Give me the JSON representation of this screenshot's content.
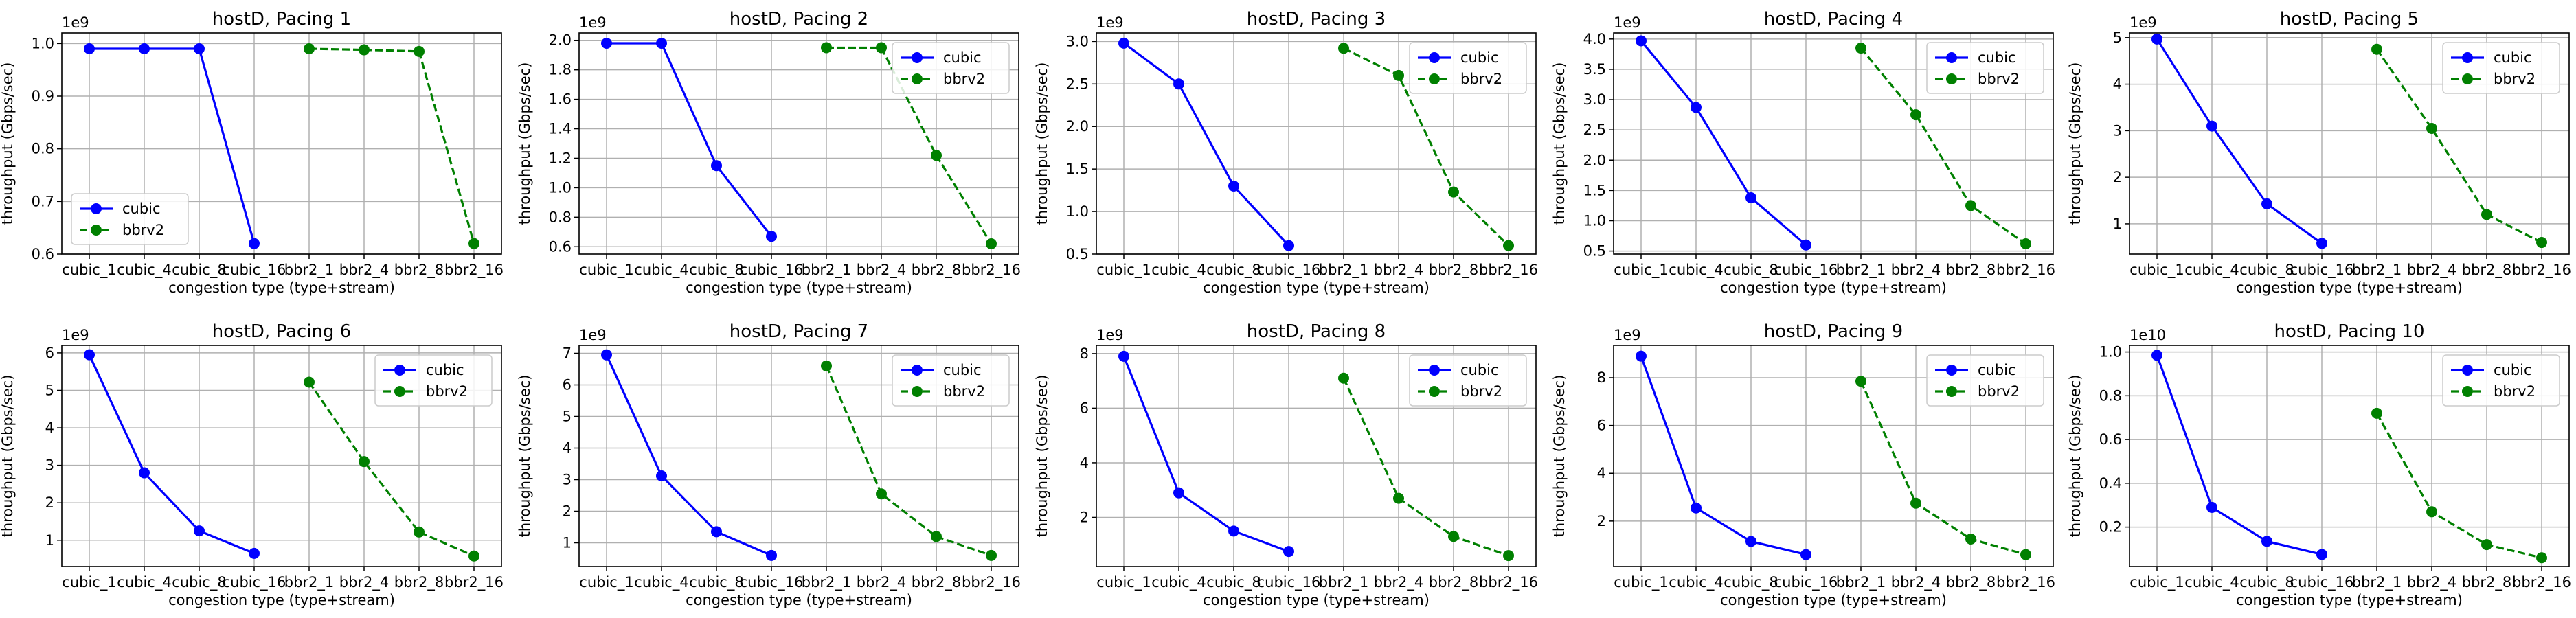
{
  "figure": {
    "xlabel": "congestion type (type+stream)",
    "ylabel": "throughput (Gbps/sec)",
    "series_names": [
      "cubic",
      "bbrv2"
    ],
    "series_colors": {
      "cubic": "#0000ff",
      "bbrv2": "#008000"
    },
    "grid": true
  },
  "chart_data": [
    {
      "type": "line",
      "title": "hostD, Pacing 1",
      "offset_label": "1e9",
      "legend": "lower-left",
      "categories": [
        "cubic_1",
        "cubic_4",
        "cubic_8",
        "cubic_16",
        "bbr2_1",
        "bbr2_4",
        "bbr2_8",
        "bbr2_16"
      ],
      "ylim": [
        0.6,
        1.02
      ],
      "yticks": [
        0.6,
        0.7,
        0.8,
        0.9,
        1.0
      ],
      "ytick_labels": [
        "0.6",
        "0.7",
        "0.8",
        "0.9",
        "1.0"
      ],
      "series": [
        {
          "name": "cubic",
          "style": "solid",
          "x": [
            0,
            1,
            2,
            3
          ],
          "values": [
            0.99,
            0.99,
            0.99,
            0.62
          ]
        },
        {
          "name": "bbrv2",
          "style": "dashed",
          "x": [
            4,
            5,
            6,
            7
          ],
          "values": [
            0.99,
            0.988,
            0.985,
            0.62
          ]
        }
      ],
      "xlabel": "congestion type (type+stream)",
      "ylabel": "throughput (Gbps/sec)"
    },
    {
      "type": "line",
      "title": "hostD, Pacing 2",
      "offset_label": "1e9",
      "legend": "top-right",
      "categories": [
        "cubic_1",
        "cubic_4",
        "cubic_8",
        "cubic_16",
        "bbr2_1",
        "bbr2_4",
        "bbr2_8",
        "bbr2_16"
      ],
      "ylim": [
        0.55,
        2.05
      ],
      "yticks": [
        0.6,
        0.8,
        1.0,
        1.2,
        1.4,
        1.6,
        1.8,
        2.0
      ],
      "ytick_labels": [
        "0.6",
        "0.8",
        "1.0",
        "1.2",
        "1.4",
        "1.6",
        "1.8",
        "2.0"
      ],
      "series": [
        {
          "name": "cubic",
          "style": "solid",
          "x": [
            0,
            1,
            2,
            3
          ],
          "values": [
            1.98,
            1.98,
            1.15,
            0.67
          ]
        },
        {
          "name": "bbrv2",
          "style": "dashed",
          "x": [
            4,
            5,
            6,
            7
          ],
          "values": [
            1.95,
            1.95,
            1.22,
            0.62
          ]
        }
      ],
      "xlabel": "congestion type (type+stream)",
      "ylabel": "throughput (Gbps/sec)"
    },
    {
      "type": "line",
      "title": "hostD, Pacing 3",
      "offset_label": "1e9",
      "legend": "top-right",
      "categories": [
        "cubic_1",
        "cubic_4",
        "cubic_8",
        "cubic_16",
        "bbr2_1",
        "bbr2_4",
        "bbr2_8",
        "bbr2_16"
      ],
      "ylim": [
        0.5,
        3.1
      ],
      "yticks": [
        0.5,
        1.0,
        1.5,
        2.0,
        2.5,
        3.0
      ],
      "ytick_labels": [
        "0.5",
        "1.0",
        "1.5",
        "2.0",
        "2.5",
        "3.0"
      ],
      "series": [
        {
          "name": "cubic",
          "style": "solid",
          "x": [
            0,
            1,
            2,
            3
          ],
          "values": [
            2.98,
            2.5,
            1.3,
            0.6
          ]
        },
        {
          "name": "bbrv2",
          "style": "dashed",
          "x": [
            4,
            5,
            6,
            7
          ],
          "values": [
            2.92,
            2.6,
            1.23,
            0.6
          ]
        }
      ],
      "xlabel": "congestion type (type+stream)",
      "ylabel": "throughput (Gbps/sec)"
    },
    {
      "type": "line",
      "title": "hostD, Pacing 4",
      "offset_label": "1e9",
      "legend": "top-right",
      "categories": [
        "cubic_1",
        "cubic_4",
        "cubic_8",
        "cubic_16",
        "bbr2_1",
        "bbr2_4",
        "bbr2_8",
        "bbr2_16"
      ],
      "ylim": [
        0.45,
        4.1
      ],
      "yticks": [
        0.5,
        1.0,
        1.5,
        2.0,
        2.5,
        3.0,
        3.5,
        4.0
      ],
      "ytick_labels": [
        "0.5",
        "1.0",
        "1.5",
        "2.0",
        "2.5",
        "3.0",
        "3.5",
        "4.0"
      ],
      "series": [
        {
          "name": "cubic",
          "style": "solid",
          "x": [
            0,
            1,
            2,
            3
          ],
          "values": [
            3.97,
            2.87,
            1.38,
            0.6
          ]
        },
        {
          "name": "bbrv2",
          "style": "dashed",
          "x": [
            4,
            5,
            6,
            7
          ],
          "values": [
            3.85,
            2.75,
            1.25,
            0.62
          ]
        }
      ],
      "xlabel": "congestion type (type+stream)",
      "ylabel": "throughput (Gbps/sec)"
    },
    {
      "type": "line",
      "title": "hostD, Pacing 5",
      "offset_label": "1e9",
      "legend": "top-right",
      "categories": [
        "cubic_1",
        "cubic_4",
        "cubic_8",
        "cubic_16",
        "bbr2_1",
        "bbr2_4",
        "bbr2_8",
        "bbr2_16"
      ],
      "ylim": [
        0.35,
        5.1
      ],
      "yticks": [
        1,
        2,
        3,
        4,
        5
      ],
      "ytick_labels": [
        "1",
        "2",
        "3",
        "4",
        "5"
      ],
      "series": [
        {
          "name": "cubic",
          "style": "solid",
          "x": [
            0,
            1,
            2,
            3
          ],
          "values": [
            4.97,
            3.1,
            1.43,
            0.58
          ]
        },
        {
          "name": "bbrv2",
          "style": "dashed",
          "x": [
            4,
            5,
            6,
            7
          ],
          "values": [
            4.75,
            3.05,
            1.2,
            0.6
          ]
        }
      ],
      "xlabel": "congestion type (type+stream)",
      "ylabel": "throughput (Gbps/sec)"
    },
    {
      "type": "line",
      "title": "hostD, Pacing 6",
      "offset_label": "1e9",
      "legend": "top-right",
      "categories": [
        "cubic_1",
        "cubic_4",
        "cubic_8",
        "cubic_16",
        "bbr2_1",
        "bbr2_4",
        "bbr2_8",
        "bbr2_16"
      ],
      "ylim": [
        0.3,
        6.2
      ],
      "yticks": [
        1,
        2,
        3,
        4,
        5,
        6
      ],
      "ytick_labels": [
        "1",
        "2",
        "3",
        "4",
        "5",
        "6"
      ],
      "series": [
        {
          "name": "cubic",
          "style": "solid",
          "x": [
            0,
            1,
            2,
            3
          ],
          "values": [
            5.95,
            2.8,
            1.25,
            0.65
          ]
        },
        {
          "name": "bbrv2",
          "style": "dashed",
          "x": [
            4,
            5,
            6,
            7
          ],
          "values": [
            5.22,
            3.1,
            1.22,
            0.58
          ]
        }
      ],
      "xlabel": "congestion type (type+stream)",
      "ylabel": "throughput (Gbps/sec)"
    },
    {
      "type": "line",
      "title": "hostD, Pacing 7",
      "offset_label": "1e9",
      "legend": "top-right",
      "categories": [
        "cubic_1",
        "cubic_4",
        "cubic_8",
        "cubic_16",
        "bbr2_1",
        "bbr2_4",
        "bbr2_8",
        "bbr2_16"
      ],
      "ylim": [
        0.25,
        7.25
      ],
      "yticks": [
        1,
        2,
        3,
        4,
        5,
        6,
        7
      ],
      "ytick_labels": [
        "1",
        "2",
        "3",
        "4",
        "5",
        "6",
        "7"
      ],
      "series": [
        {
          "name": "cubic",
          "style": "solid",
          "x": [
            0,
            1,
            2,
            3
          ],
          "values": [
            6.95,
            3.12,
            1.35,
            0.6
          ]
        },
        {
          "name": "bbrv2",
          "style": "dashed",
          "x": [
            4,
            5,
            6,
            7
          ],
          "values": [
            6.6,
            2.55,
            1.2,
            0.6
          ]
        }
      ],
      "xlabel": "congestion type (type+stream)",
      "ylabel": "throughput (Gbps/sec)"
    },
    {
      "type": "line",
      "title": "hostD, Pacing 8",
      "offset_label": "1e9",
      "legend": "top-right",
      "categories": [
        "cubic_1",
        "cubic_4",
        "cubic_8",
        "cubic_16",
        "bbr2_1",
        "bbr2_4",
        "bbr2_8",
        "bbr2_16"
      ],
      "ylim": [
        0.2,
        8.3
      ],
      "yticks": [
        2,
        4,
        6,
        8
      ],
      "ytick_labels": [
        "2",
        "4",
        "6",
        "8"
      ],
      "series": [
        {
          "name": "cubic",
          "style": "solid",
          "x": [
            0,
            1,
            2,
            3
          ],
          "values": [
            7.9,
            2.9,
            1.5,
            0.75
          ]
        },
        {
          "name": "bbrv2",
          "style": "dashed",
          "x": [
            4,
            5,
            6,
            7
          ],
          "values": [
            7.1,
            2.7,
            1.3,
            0.6
          ]
        }
      ],
      "xlabel": "congestion type (type+stream)",
      "ylabel": "throughput (Gbps/sec)"
    },
    {
      "type": "line",
      "title": "hostD, Pacing 9",
      "offset_label": "1e9",
      "legend": "top-right",
      "categories": [
        "cubic_1",
        "cubic_4",
        "cubic_8",
        "cubic_16",
        "bbr2_1",
        "bbr2_4",
        "bbr2_8",
        "bbr2_16"
      ],
      "ylim": [
        0.1,
        9.35
      ],
      "yticks": [
        2,
        4,
        6,
        8
      ],
      "ytick_labels": [
        "2",
        "4",
        "6",
        "8"
      ],
      "series": [
        {
          "name": "cubic",
          "style": "solid",
          "x": [
            0,
            1,
            2,
            3
          ],
          "values": [
            8.9,
            2.55,
            1.15,
            0.6
          ]
        },
        {
          "name": "bbrv2",
          "style": "dashed",
          "x": [
            4,
            5,
            6,
            7
          ],
          "values": [
            7.85,
            2.75,
            1.25,
            0.6
          ]
        }
      ],
      "xlabel": "congestion type (type+stream)",
      "ylabel": "throughput (Gbps/sec)"
    },
    {
      "type": "line",
      "title": "hostD, Pacing 10",
      "offset_label": "1e10",
      "legend": "top-right",
      "categories": [
        "cubic_1",
        "cubic_4",
        "cubic_8",
        "cubic_16",
        "bbr2_1",
        "bbr2_4",
        "bbr2_8",
        "bbr2_16"
      ],
      "ylim": [
        0.02,
        1.03
      ],
      "yticks": [
        0.2,
        0.4,
        0.6,
        0.8,
        1.0
      ],
      "ytick_labels": [
        "0.2",
        "0.4",
        "0.6",
        "0.8",
        "1.0"
      ],
      "series": [
        {
          "name": "cubic",
          "style": "solid",
          "x": [
            0,
            1,
            2,
            3
          ],
          "values": [
            0.985,
            0.29,
            0.135,
            0.075
          ]
        },
        {
          "name": "bbrv2",
          "style": "dashed",
          "x": [
            4,
            5,
            6,
            7
          ],
          "values": [
            0.72,
            0.27,
            0.12,
            0.06
          ]
        }
      ],
      "xlabel": "congestion type (type+stream)",
      "ylabel": "throughput (Gbps/sec)"
    }
  ]
}
